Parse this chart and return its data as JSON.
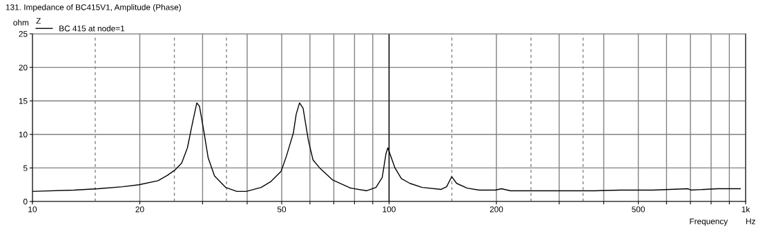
{
  "chart_data": {
    "type": "line",
    "title": "131. Impedance of BC415V1, Amplitude (Phase)",
    "ylabel": "ohm",
    "xlabel": "Frequency",
    "legend_title": "Z",
    "legend": "top left",
    "log": "x",
    "grid": true,
    "line_style": "solid",
    "marker": "none",
    "annotations": [
      "Hz"
    ],
    "xlim": [
      10,
      1000
    ],
    "xticks": [
      10,
      20,
      {
        "value": 30,
        "label": null
      },
      {
        "value": 40,
        "label": null
      },
      50,
      {
        "value": 60,
        "label": null
      },
      {
        "value": 70,
        "label": null
      },
      {
        "value": 80,
        "label": null
      },
      {
        "value": 90,
        "label": null
      },
      100,
      200,
      {
        "value": 300,
        "label": null
      },
      {
        "value": 400,
        "label": null
      },
      500,
      {
        "value": 600,
        "label": null
      },
      {
        "value": 700,
        "label": null
      },
      {
        "value": 800,
        "label": null
      },
      {
        "value": 900,
        "label": null
      },
      {
        "value": 1000,
        "label": "1k"
      }
    ],
    "ylim": [
      0,
      25
    ],
    "yticks": [
      0,
      5,
      10,
      15,
      20,
      25
    ],
    "ref_lines": [
      {
        "axis": "x",
        "value": 15,
        "color": "#808080",
        "line_style": "dashed"
      },
      {
        "axis": "x",
        "value": 25,
        "color": "#808080",
        "line_style": "dashed"
      },
      {
        "axis": "x",
        "value": 35,
        "color": "#808080",
        "line_style": "dashed"
      },
      {
        "axis": "x",
        "value": 150,
        "color": "#808080",
        "line_style": "dashed"
      },
      {
        "axis": "x",
        "value": 250,
        "color": "#808080",
        "line_style": "dashed"
      },
      {
        "axis": "x",
        "value": 350,
        "color": "#808080",
        "line_style": "dashed"
      },
      {
        "axis": "x",
        "value": 100,
        "color": "#000000",
        "line_style": "solid"
      }
    ],
    "series": [
      {
        "name": "BC 415 at node=1",
        "color": "#000000",
        "x": [
          10,
          13.1,
          15.3,
          17.9,
          19.9,
          22.5,
          23.9,
          25.1,
          26.2,
          27.2,
          28.1,
          28.9,
          29.4,
          30.3,
          31.1,
          32.4,
          34.8,
          37.4,
          39.8,
          43.8,
          46.7,
          49.8,
          51.5,
          53.9,
          54.9,
          56.1,
          57.4,
          59.4,
          61.2,
          63.9,
          69.5,
          78,
          86.6,
          91.9,
          95.7,
          98,
          99.2,
          103.9,
          108.3,
          114.4,
          123.8,
          139.8,
          145,
          149.9,
          154.7,
          165.5,
          178.9,
          198.8,
          206.6,
          218.9,
          377,
          445,
          551,
          689,
          702,
          836,
          966
        ],
        "values": [
          1.5,
          1.7,
          1.9,
          2.2,
          2.5,
          3.1,
          3.9,
          4.7,
          5.7,
          8.0,
          11.7,
          14.7,
          14.2,
          10.2,
          6.5,
          3.8,
          2.1,
          1.5,
          1.5,
          2.1,
          3.0,
          4.5,
          6.7,
          10.2,
          13.0,
          14.7,
          13.9,
          9.1,
          6.2,
          5.0,
          3.2,
          2.0,
          1.6,
          2.1,
          3.6,
          7.1,
          8.0,
          5.0,
          3.4,
          2.7,
          2.1,
          1.8,
          2.2,
          3.7,
          2.7,
          2.0,
          1.7,
          1.7,
          1.9,
          1.6,
          1.6,
          1.7,
          1.7,
          1.9,
          1.7,
          1.9,
          1.9
        ]
      }
    ]
  }
}
